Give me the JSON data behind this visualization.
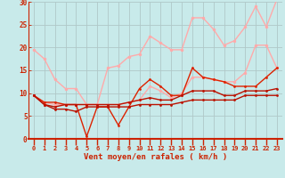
{
  "xlabel": "Vent moyen/en rafales ( km/h )",
  "xlim": [
    -0.5,
    23.5
  ],
  "ylim": [
    0,
    30
  ],
  "bg_color": "#c8eaea",
  "grid_color": "#b0c8c8",
  "xlabel_color": "#cc2200",
  "tick_color": "#cc2200",
  "spine_color": "#cc2200",
  "series": [
    {
      "color": "#ffaaaa",
      "linewidth": 1.0,
      "markersize": 2.5,
      "values": [
        19.5,
        17.5,
        13.0,
        11.0,
        11.0,
        7.5,
        7.5,
        15.5,
        16.0,
        18.0,
        18.5,
        22.5,
        21.0,
        19.5,
        19.5,
        26.5,
        26.5,
        24.0,
        20.5,
        21.5,
        24.5,
        29.0,
        24.5,
        30.5
      ]
    },
    {
      "color": "#ffaaaa",
      "linewidth": 1.0,
      "markersize": 2.5,
      "values": [
        9.5,
        8.0,
        7.5,
        7.5,
        7.5,
        7.5,
        7.5,
        7.5,
        7.5,
        8.0,
        8.5,
        11.5,
        10.5,
        9.0,
        10.0,
        13.5,
        13.5,
        13.0,
        12.5,
        12.5,
        14.5,
        20.5,
        20.5,
        15.5
      ]
    },
    {
      "color": "#dd2200",
      "linewidth": 1.0,
      "markersize": 2.0,
      "values": [
        9.5,
        8.0,
        8.0,
        7.5,
        7.5,
        0.5,
        7.0,
        7.0,
        3.0,
        7.0,
        11.0,
        13.0,
        11.5,
        9.5,
        9.5,
        15.5,
        13.5,
        13.0,
        12.5,
        11.5,
        11.5,
        11.5,
        13.5,
        15.5
      ]
    },
    {
      "color": "#bb1100",
      "linewidth": 1.0,
      "markersize": 2.0,
      "values": [
        9.5,
        7.5,
        7.0,
        7.5,
        7.5,
        7.5,
        7.5,
        7.5,
        7.5,
        8.0,
        8.5,
        9.0,
        8.5,
        8.5,
        9.5,
        10.5,
        10.5,
        10.5,
        9.5,
        9.5,
        10.5,
        10.5,
        10.5,
        11.0
      ]
    },
    {
      "color": "#bb1100",
      "linewidth": 1.0,
      "markersize": 2.0,
      "values": [
        9.5,
        7.5,
        6.5,
        6.5,
        6.0,
        7.0,
        7.0,
        7.0,
        7.0,
        7.0,
        7.5,
        7.5,
        7.5,
        7.5,
        8.0,
        8.5,
        8.5,
        8.5,
        8.5,
        8.5,
        9.5,
        9.5,
        9.5,
        9.5
      ]
    }
  ],
  "xticks": [
    0,
    1,
    2,
    3,
    4,
    5,
    6,
    7,
    8,
    9,
    10,
    11,
    12,
    13,
    14,
    15,
    16,
    17,
    18,
    19,
    20,
    21,
    22,
    23
  ],
  "yticks": [
    0,
    5,
    10,
    15,
    20,
    25,
    30
  ]
}
